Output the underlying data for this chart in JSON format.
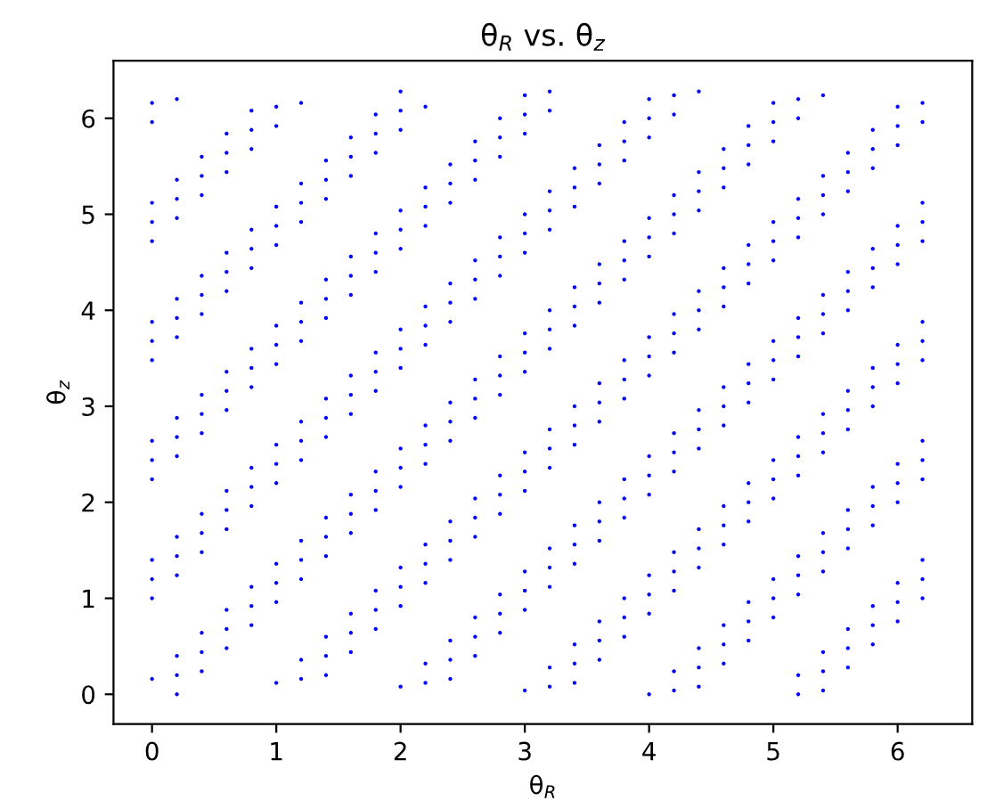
{
  "chart_data": {
    "type": "scatter",
    "title": "θ$_{R}$ vs. θ$_{z}$",
    "xlabel": "θ$_{R}$",
    "ylabel": "θ$_{z}$",
    "xlim": [
      -0.31,
      6.6
    ],
    "ylim": [
      -0.31,
      6.6
    ],
    "xticks": [
      0,
      1,
      2,
      3,
      4,
      5,
      6
    ],
    "yticks": [
      0,
      1,
      2,
      3,
      4,
      5,
      6
    ],
    "grid": false,
    "marker": "circle",
    "series": [
      {
        "color": "#0000ff",
        "x": [
          0,
          0.2
        ],
        "values": [
          5.96,
          6.2
        ]
      },
      {
        "color": "#0000ff",
        "x": [
          0
        ],
        "values": [
          6.16
        ]
      },
      {
        "color": "#0000ff",
        "x": [
          0,
          0.2,
          0.4,
          0.6,
          0.8,
          1.0,
          1.2
        ],
        "values": [
          4.72,
          4.96,
          5.2,
          5.44,
          5.68,
          5.92,
          6.16
        ]
      },
      {
        "color": "#0000ff",
        "x": [
          0,
          0.2,
          0.4,
          0.6,
          0.8,
          1.0
        ],
        "values": [
          4.92,
          5.16,
          5.4,
          5.64,
          5.88,
          6.12
        ]
      },
      {
        "color": "#0000ff",
        "x": [
          0,
          0.2,
          0.4,
          0.6,
          0.8
        ],
        "values": [
          5.12,
          5.36,
          5.6,
          5.84,
          6.08
        ]
      },
      {
        "color": "#0000ff",
        "x": [
          0,
          0.2,
          0.4,
          0.6,
          0.8,
          1.0,
          1.2,
          1.4,
          1.6,
          1.8,
          2.0,
          2.2
        ],
        "values": [
          3.48,
          3.72,
          3.96,
          4.2,
          4.44,
          4.68,
          4.92,
          5.16,
          5.4,
          5.64,
          5.88,
          6.12
        ]
      },
      {
        "color": "#0000ff",
        "x": [
          0,
          0.2,
          0.4,
          0.6,
          0.8,
          1.0,
          1.2,
          1.4,
          1.6,
          1.8,
          2.0
        ],
        "values": [
          3.68,
          3.92,
          4.16,
          4.4,
          4.64,
          4.88,
          5.12,
          5.36,
          5.6,
          5.84,
          6.08
        ]
      },
      {
        "color": "#0000ff",
        "x": [
          0,
          0.2,
          0.4,
          0.6,
          0.8,
          1.0,
          1.2,
          1.4,
          1.6,
          1.8,
          2.0
        ],
        "values": [
          3.88,
          4.12,
          4.36,
          4.6,
          4.84,
          5.08,
          5.32,
          5.56,
          5.8,
          6.04,
          6.28
        ]
      },
      {
        "color": "#0000ff",
        "x": [
          0,
          0.2,
          0.4,
          0.6,
          0.8,
          1.0,
          1.2,
          1.4,
          1.6,
          1.8,
          2.0,
          2.2,
          2.4,
          2.6,
          2.8,
          3.0,
          3.2
        ],
        "values": [
          2.24,
          2.48,
          2.72,
          2.96,
          3.2,
          3.44,
          3.68,
          3.92,
          4.16,
          4.4,
          4.64,
          4.88,
          5.12,
          5.36,
          5.6,
          5.84,
          6.08
        ]
      },
      {
        "color": "#0000ff",
        "x": [
          0,
          0.2,
          0.4,
          0.6,
          0.8,
          1.0,
          1.2,
          1.4,
          1.6,
          1.8,
          2.0,
          2.2,
          2.4,
          2.6,
          2.8,
          3.0,
          3.2
        ],
        "values": [
          2.44,
          2.68,
          2.92,
          3.16,
          3.4,
          3.64,
          3.88,
          4.12,
          4.36,
          4.6,
          4.84,
          5.08,
          5.32,
          5.56,
          5.8,
          6.04,
          6.28
        ]
      },
      {
        "color": "#0000ff",
        "x": [
          0,
          0.2,
          0.4,
          0.6,
          0.8,
          1.0,
          1.2,
          1.4,
          1.6,
          1.8,
          2.0,
          2.2,
          2.4,
          2.6,
          2.8,
          3.0
        ],
        "values": [
          2.64,
          2.88,
          3.12,
          3.36,
          3.6,
          3.84,
          4.08,
          4.32,
          4.56,
          4.8,
          5.04,
          5.28,
          5.52,
          5.76,
          6.0,
          6.24
        ]
      },
      {
        "color": "#0000ff",
        "x": [
          0,
          0.2,
          0.4,
          0.6,
          0.8,
          1.0,
          1.2,
          1.4,
          1.6,
          1.8,
          2.0,
          2.2,
          2.4,
          2.6,
          2.8,
          3.0,
          3.2,
          3.4,
          3.6,
          3.8,
          4.0,
          4.2,
          4.4
        ],
        "values": [
          1.0,
          1.24,
          1.48,
          1.72,
          1.96,
          2.2,
          2.44,
          2.68,
          2.92,
          3.16,
          3.4,
          3.64,
          3.88,
          4.12,
          4.36,
          4.6,
          4.84,
          5.08,
          5.32,
          5.56,
          5.8,
          6.04,
          6.28
        ]
      },
      {
        "color": "#0000ff",
        "x": [
          0,
          0.2,
          0.4,
          0.6,
          0.8,
          1.0,
          1.2,
          1.4,
          1.6,
          1.8,
          2.0,
          2.2,
          2.4,
          2.6,
          2.8,
          3.0,
          3.2,
          3.4,
          3.6,
          3.8,
          4.0,
          4.2
        ],
        "values": [
          1.2,
          1.44,
          1.68,
          1.92,
          2.16,
          2.4,
          2.64,
          2.88,
          3.12,
          3.36,
          3.6,
          3.84,
          4.08,
          4.32,
          4.56,
          4.8,
          5.04,
          5.28,
          5.52,
          5.76,
          6.0,
          6.24
        ]
      },
      {
        "color": "#0000ff",
        "x": [
          0,
          0.2,
          0.4,
          0.6,
          0.8,
          1.0,
          1.2,
          1.4,
          1.6,
          1.8,
          2.0,
          2.2,
          2.4,
          2.6,
          2.8,
          3.0,
          3.2,
          3.4,
          3.6,
          3.8,
          4.0
        ],
        "values": [
          1.4,
          1.64,
          1.88,
          2.12,
          2.36,
          2.6,
          2.84,
          3.08,
          3.32,
          3.56,
          3.8,
          4.04,
          4.28,
          4.52,
          4.76,
          5.0,
          5.24,
          5.48,
          5.72,
          5.96,
          6.2
        ]
      },
      {
        "color": "#0000ff",
        "x": [
          0.2,
          0.4,
          0.6,
          0.8,
          1.0,
          1.2,
          1.4,
          1.6,
          1.8,
          2.0,
          2.2,
          2.4,
          2.6,
          2.8,
          3.0,
          3.2,
          3.4,
          3.6,
          3.8,
          4.0,
          4.2,
          4.4,
          4.6,
          4.8,
          5.0,
          5.2,
          5.4
        ],
        "values": [
          0,
          0.24,
          0.48,
          0.72,
          0.96,
          1.2,
          1.44,
          1.68,
          1.92,
          2.16,
          2.4,
          2.64,
          2.88,
          3.12,
          3.36,
          3.6,
          3.84,
          4.08,
          4.32,
          4.56,
          4.8,
          5.04,
          5.28,
          5.52,
          5.76,
          6.0,
          6.24
        ]
      },
      {
        "color": "#0000ff",
        "x": [
          0.2,
          0.4,
          0.6,
          0.8,
          1.0,
          1.2,
          1.4,
          1.6,
          1.8,
          2.0,
          2.2,
          2.4,
          2.6,
          2.8,
          3.0,
          3.2,
          3.4,
          3.6,
          3.8,
          4.0,
          4.2,
          4.4,
          4.6,
          4.8,
          5.0,
          5.2
        ],
        "values": [
          0.2,
          0.44,
          0.68,
          0.92,
          1.16,
          1.4,
          1.64,
          1.88,
          2.12,
          2.36,
          2.6,
          2.84,
          3.08,
          3.32,
          3.56,
          3.8,
          4.04,
          4.28,
          4.52,
          4.76,
          5.0,
          5.24,
          5.48,
          5.72,
          5.96,
          6.2
        ]
      },
      {
        "color": "#0000ff",
        "x": [
          0,
          0.2,
          0.4,
          0.6,
          0.8,
          1.0,
          1.2,
          1.4,
          1.6,
          1.8,
          2.0,
          2.2,
          2.4,
          2.6,
          2.8,
          3.0,
          3.2,
          3.4,
          3.6,
          3.8,
          4.0,
          4.2,
          4.4,
          4.6,
          4.8,
          5.0
        ],
        "values": [
          0.16,
          0.4,
          0.64,
          0.88,
          1.12,
          1.36,
          1.6,
          1.84,
          2.08,
          2.32,
          2.56,
          2.8,
          3.04,
          3.28,
          3.52,
          3.76,
          4.0,
          4.24,
          4.48,
          4.72,
          4.96,
          5.2,
          5.44,
          5.68,
          5.92,
          6.16
        ]
      },
      {
        "color": "#0000ff",
        "x": [
          1.4,
          1.6,
          1.8,
          2.0,
          2.2,
          2.4,
          2.6,
          2.8,
          3.0,
          3.2,
          3.4,
          3.6,
          3.8,
          4.0,
          4.2,
          4.4,
          4.6,
          4.8,
          5.0,
          5.2,
          5.4,
          5.6,
          5.8,
          6.0,
          6.2
        ],
        "values": [
          0.2,
          0.44,
          0.68,
          0.92,
          1.16,
          1.4,
          1.64,
          1.88,
          2.12,
          2.36,
          2.6,
          2.84,
          3.08,
          3.32,
          3.56,
          3.8,
          4.04,
          4.28,
          4.52,
          4.76,
          5.0,
          5.24,
          5.48,
          5.72,
          5.96
        ]
      },
      {
        "color": "#0000ff",
        "x": [
          1.2,
          1.4,
          1.6,
          1.8,
          2.0,
          2.2,
          2.4,
          2.6,
          2.8,
          3.0,
          3.2,
          3.4,
          3.6,
          3.8,
          4.0,
          4.2,
          4.4,
          4.6,
          4.8,
          5.0,
          5.2,
          5.4,
          5.6,
          5.8,
          6.0,
          6.2
        ],
        "values": [
          0.16,
          0.4,
          0.64,
          0.88,
          1.12,
          1.36,
          1.6,
          1.84,
          2.08,
          2.32,
          2.56,
          2.8,
          3.04,
          3.28,
          3.52,
          3.76,
          4.0,
          4.24,
          4.48,
          4.72,
          4.96,
          5.2,
          5.44,
          5.68,
          5.92,
          6.16
        ]
      },
      {
        "color": "#0000ff",
        "x": [
          1.0,
          1.2,
          1.4,
          1.6,
          1.8,
          2.0,
          2.2,
          2.4,
          2.6,
          2.8,
          3.0,
          3.2,
          3.4,
          3.6,
          3.8,
          4.0,
          4.2,
          4.4,
          4.6,
          4.8,
          5.0,
          5.2,
          5.4,
          5.6,
          5.8,
          6.0
        ],
        "values": [
          0.12,
          0.36,
          0.6,
          0.84,
          1.08,
          1.32,
          1.56,
          1.8,
          2.04,
          2.28,
          2.52,
          2.76,
          3.0,
          3.24,
          3.48,
          3.72,
          3.96,
          4.2,
          4.44,
          4.68,
          4.92,
          5.16,
          5.4,
          5.64,
          5.88,
          6.12
        ]
      },
      {
        "color": "#0000ff",
        "x": [
          2.4,
          2.6,
          2.8,
          3.0,
          3.2,
          3.4,
          3.6,
          3.8,
          4.0,
          4.2,
          4.4,
          4.6,
          4.8,
          5.0,
          5.2,
          5.4,
          5.6,
          5.8,
          6.0,
          6.2
        ],
        "values": [
          0.16,
          0.4,
          0.64,
          0.88,
          1.12,
          1.36,
          1.6,
          1.84,
          2.08,
          2.32,
          2.56,
          2.8,
          3.04,
          3.28,
          3.52,
          3.76,
          4.0,
          4.24,
          4.48,
          4.72
        ]
      },
      {
        "color": "#0000ff",
        "x": [
          2.2,
          2.4,
          2.6,
          2.8,
          3.0,
          3.2,
          3.4,
          3.6,
          3.8,
          4.0,
          4.2,
          4.4,
          4.6,
          4.8,
          5.0,
          5.2,
          5.4,
          5.6,
          5.8,
          6.0,
          6.2
        ],
        "values": [
          0.12,
          0.36,
          0.6,
          0.84,
          1.08,
          1.32,
          1.56,
          1.8,
          2.04,
          2.28,
          2.52,
          2.76,
          3.0,
          3.24,
          3.48,
          3.72,
          3.96,
          4.2,
          4.44,
          4.68,
          4.92
        ]
      },
      {
        "color": "#0000ff",
        "x": [
          2.0,
          2.2,
          2.4,
          2.6,
          2.8,
          3.0,
          3.2,
          3.4,
          3.6,
          3.8,
          4.0,
          4.2,
          4.4,
          4.6,
          4.8,
          5.0,
          5.2,
          5.4,
          5.6,
          5.8,
          6.0,
          6.2
        ],
        "values": [
          0.08,
          0.32,
          0.56,
          0.8,
          1.04,
          1.28,
          1.52,
          1.76,
          2.0,
          2.24,
          2.48,
          2.72,
          2.96,
          3.2,
          3.44,
          3.68,
          3.92,
          4.16,
          4.4,
          4.64,
          4.88,
          5.12
        ]
      },
      {
        "color": "#0000ff",
        "x": [
          3.4,
          3.6,
          3.8,
          4.0,
          4.2,
          4.4,
          4.6,
          4.8,
          5.0,
          5.2,
          5.4,
          5.6,
          5.8,
          6.0,
          6.2
        ],
        "values": [
          0.12,
          0.36,
          0.6,
          0.84,
          1.08,
          1.32,
          1.56,
          1.8,
          2.04,
          2.28,
          2.52,
          2.76,
          3.0,
          3.24,
          3.48
        ]
      },
      {
        "color": "#0000ff",
        "x": [
          3.2,
          3.4,
          3.6,
          3.8,
          4.0,
          4.2,
          4.4,
          4.6,
          4.8,
          5.0,
          5.2,
          5.4,
          5.6,
          5.8,
          6.0,
          6.2
        ],
        "values": [
          0.08,
          0.32,
          0.56,
          0.8,
          1.04,
          1.28,
          1.52,
          1.76,
          2.0,
          2.24,
          2.48,
          2.72,
          2.96,
          3.2,
          3.44,
          3.68
        ]
      },
      {
        "color": "#0000ff",
        "x": [
          3.0,
          3.2,
          3.4,
          3.6,
          3.8,
          4.0,
          4.2,
          4.4,
          4.6,
          4.8,
          5.0,
          5.2,
          5.4,
          5.6,
          5.8,
          6.0,
          6.2
        ],
        "values": [
          0.04,
          0.28,
          0.52,
          0.76,
          1.0,
          1.24,
          1.48,
          1.72,
          1.96,
          2.2,
          2.44,
          2.68,
          2.92,
          3.16,
          3.4,
          3.64,
          3.88
        ]
      },
      {
        "color": "#0000ff",
        "x": [
          4.4,
          4.6,
          4.8,
          5.0,
          5.2,
          5.4,
          5.6,
          5.8,
          6.0,
          6.2
        ],
        "values": [
          0.08,
          0.32,
          0.56,
          0.8,
          1.04,
          1.28,
          1.52,
          1.76,
          2.0,
          2.24
        ]
      },
      {
        "color": "#0000ff",
        "x": [
          4.2,
          4.4,
          4.6,
          4.8,
          5.0,
          5.2,
          5.4,
          5.6,
          5.8,
          6.0,
          6.2
        ],
        "values": [
          0.04,
          0.28,
          0.52,
          0.76,
          1.0,
          1.24,
          1.48,
          1.72,
          1.96,
          2.2,
          2.44
        ]
      },
      {
        "color": "#0000ff",
        "x": [
          4.0,
          4.2,
          4.4,
          4.6,
          4.8,
          5.0,
          5.2,
          5.4,
          5.6,
          5.8,
          6.0,
          6.2
        ],
        "values": [
          0.0,
          0.24,
          0.48,
          0.72,
          0.96,
          1.2,
          1.44,
          1.68,
          1.92,
          2.16,
          2.4,
          2.64
        ]
      },
      {
        "color": "#0000ff",
        "x": [
          5.4,
          5.6,
          5.8,
          6.0,
          6.2
        ],
        "values": [
          0.04,
          0.28,
          0.52,
          0.76,
          1.0
        ]
      },
      {
        "color": "#0000ff",
        "x": [
          5.2,
          5.4,
          5.6,
          5.8,
          6.0,
          6.2
        ],
        "values": [
          0.0,
          0.24,
          0.48,
          0.72,
          0.96,
          1.2
        ]
      },
      {
        "color": "#0000ff",
        "x": [
          5.2,
          5.4,
          5.6,
          5.8,
          6.0,
          6.2
        ],
        "values": [
          0.2,
          0.44,
          0.68,
          0.92,
          1.16,
          1.4
        ]
      }
    ]
  }
}
